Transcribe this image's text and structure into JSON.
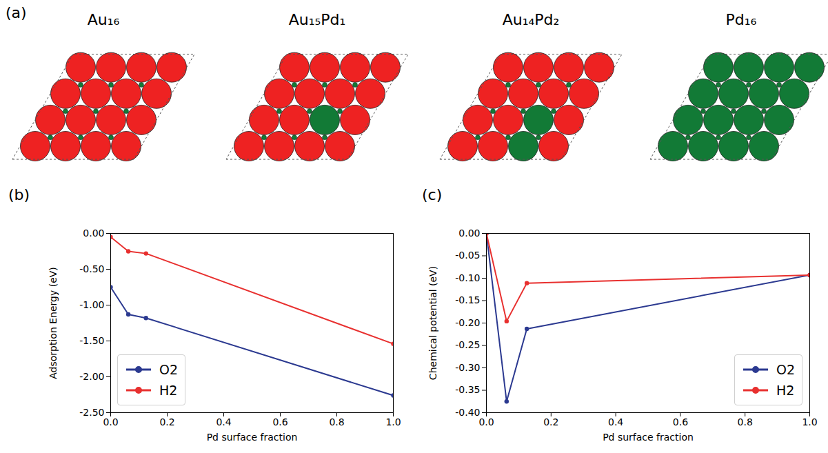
{
  "structures": {
    "label": "(a)",
    "items": [
      {
        "title": "Au₁₆",
        "pd_sites": []
      },
      {
        "title": "Au₁₅Pd₁",
        "pd_sites": [
          [
            2,
            1
          ]
        ]
      },
      {
        "title": "Au₁₄Pd₂",
        "pd_sites": [
          [
            2,
            1
          ],
          [
            2,
            0
          ]
        ]
      },
      {
        "title": "Pd₁₆",
        "pd_sites": [
          [
            0,
            0
          ],
          [
            1,
            0
          ],
          [
            2,
            0
          ],
          [
            3,
            0
          ],
          [
            0,
            1
          ],
          [
            1,
            1
          ],
          [
            2,
            1
          ],
          [
            3,
            1
          ],
          [
            0,
            2
          ],
          [
            1,
            2
          ],
          [
            2,
            2
          ],
          [
            3,
            2
          ],
          [
            0,
            3
          ],
          [
            1,
            3
          ],
          [
            2,
            3
          ],
          [
            3,
            3
          ]
        ]
      }
    ]
  },
  "chart_data": [
    {
      "type": "line",
      "panel": "(b)",
      "x": [
        0,
        0.0625,
        0.125,
        1.0
      ],
      "xlabel": "Pd surface fraction",
      "ylabel": "Adsorption Energy (eV)",
      "xlim": [
        0,
        1
      ],
      "xticks": [
        {
          "value": 0,
          "label": "0.0"
        },
        0.2,
        0.4,
        0.6,
        0.8,
        {
          "value": 1,
          "label": "1.0"
        }
      ],
      "ylim": [
        -2.5,
        0
      ],
      "yticks": [
        {
          "value": 0,
          "label": "0.00"
        },
        {
          "value": -0.5,
          "label": "-0.50"
        },
        {
          "value": -1,
          "label": "-1.00"
        },
        {
          "value": -1.5,
          "label": "-1.50"
        },
        {
          "value": -2,
          "label": "-2.00"
        },
        {
          "value": -2.5,
          "label": "-2.50"
        }
      ],
      "legend": "lower left",
      "series": [
        {
          "name": "O2",
          "color": "#2b3990",
          "marker": "circle",
          "values": [
            -0.75,
            -1.13,
            -1.18,
            -2.26
          ]
        },
        {
          "name": "H2",
          "color": "#e8302f",
          "marker": "circle",
          "values": [
            -0.05,
            -0.25,
            -0.28,
            -1.54
          ]
        }
      ]
    },
    {
      "type": "line",
      "panel": "(c)",
      "x": [
        0,
        0.0625,
        0.125,
        1.0
      ],
      "xlabel": "Pd surface fraction",
      "ylabel": "Chemical potential (eV)",
      "xlim": [
        0,
        1
      ],
      "xticks": [
        {
          "value": 0,
          "label": "0.0"
        },
        0.2,
        0.4,
        0.6,
        0.8,
        {
          "value": 1,
          "label": "1.0"
        }
      ],
      "ylim": [
        -0.4,
        0
      ],
      "yticks": [
        {
          "value": 0,
          "label": "0.00"
        },
        -0.05,
        {
          "value": -0.1,
          "label": "-0.10"
        },
        -0.15,
        {
          "value": -0.2,
          "label": "-0.20"
        },
        -0.25,
        {
          "value": -0.3,
          "label": "-0.30"
        },
        -0.35,
        {
          "value": -0.4,
          "label": "-0.40"
        }
      ],
      "legend": "lower right",
      "series": [
        {
          "name": "O2",
          "color": "#2b3990",
          "marker": "circle",
          "values": [
            0,
            -0.375,
            -0.213,
            -0.093
          ]
        },
        {
          "name": "H2",
          "color": "#e8302f",
          "marker": "circle",
          "values": [
            0,
            -0.196,
            -0.111,
            -0.093
          ]
        }
      ]
    }
  ]
}
